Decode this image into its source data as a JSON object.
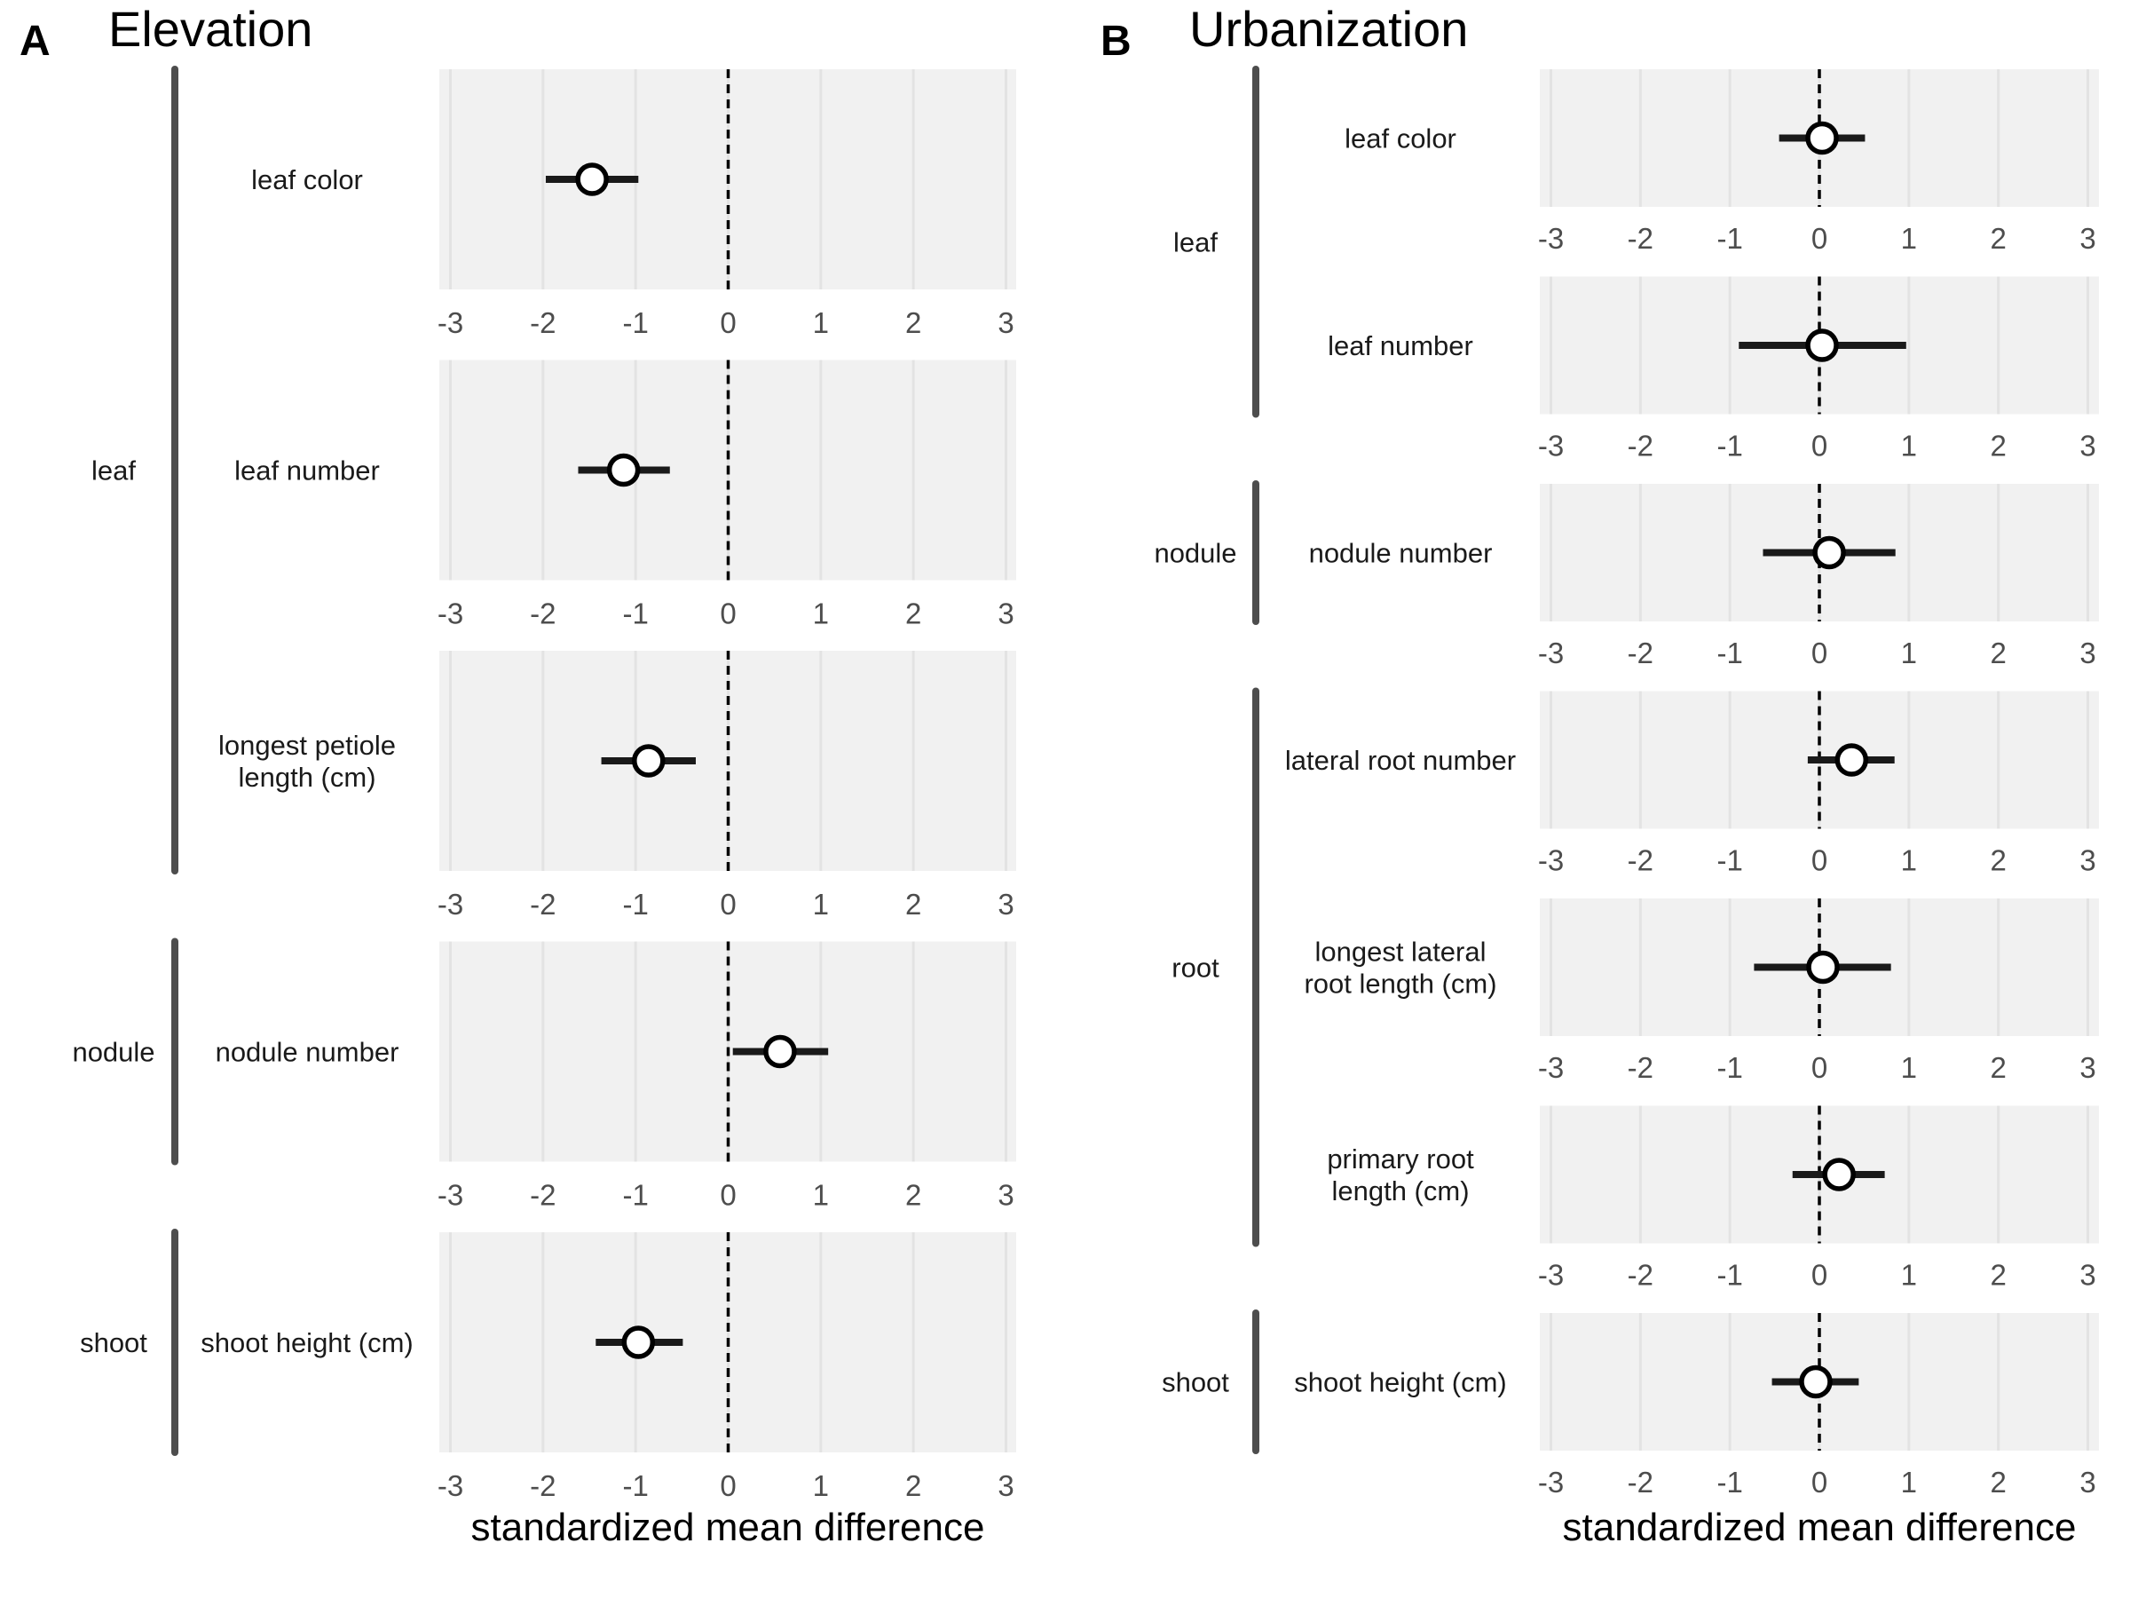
{
  "chart_data": [
    {
      "type": "forest",
      "panel_label": "A",
      "title": "Elevation",
      "xlabel": "standardized mean difference",
      "xlim": [
        -3,
        3
      ],
      "x_ticks": [
        "-3",
        "-2",
        "-1",
        "0",
        "1",
        "2",
        "3"
      ],
      "reference_line": 0,
      "groups": [
        {
          "name": "leaf",
          "traits": [
            {
              "label": "leaf color",
              "estimate": -1.47,
              "lower": -1.97,
              "upper": -0.97
            },
            {
              "label": "leaf number",
              "estimate": -1.13,
              "lower": -1.62,
              "upper": -0.63
            },
            {
              "label": "longest petiole length (cm)",
              "label_lines": [
                "longest petiole",
                "length (cm)"
              ],
              "estimate": -0.86,
              "lower": -1.37,
              "upper": -0.35
            }
          ]
        },
        {
          "name": "nodule",
          "traits": [
            {
              "label": "nodule number",
              "estimate": 0.56,
              "lower": 0.05,
              "upper": 1.08
            }
          ]
        },
        {
          "name": "shoot",
          "traits": [
            {
              "label": "shoot height (cm)",
              "estimate": -0.97,
              "lower": -1.43,
              "upper": -0.49
            }
          ]
        }
      ]
    },
    {
      "type": "forest",
      "panel_label": "B",
      "title": "Urbanization",
      "xlabel": "standardized mean difference",
      "xlim": [
        -3,
        3
      ],
      "x_ticks": [
        "-3",
        "-2",
        "-1",
        "0",
        "1",
        "2",
        "3"
      ],
      "reference_line": 0,
      "groups": [
        {
          "name": "leaf",
          "traits": [
            {
              "label": "leaf color",
              "estimate": 0.03,
              "lower": -0.45,
              "upper": 0.51
            },
            {
              "label": "leaf number",
              "estimate": 0.03,
              "lower": -0.9,
              "upper": 0.97
            }
          ]
        },
        {
          "name": "nodule",
          "traits": [
            {
              "label": "nodule number",
              "estimate": 0.11,
              "lower": -0.63,
              "upper": 0.85
            }
          ]
        },
        {
          "name": "root",
          "traits": [
            {
              "label": "lateral root number",
              "estimate": 0.36,
              "lower": -0.13,
              "upper": 0.84
            },
            {
              "label": "longest lateral root length (cm)",
              "label_lines": [
                "longest lateral",
                "root length (cm)"
              ],
              "estimate": 0.04,
              "lower": -0.73,
              "upper": 0.8
            },
            {
              "label": "primary root length (cm)",
              "label_lines": [
                "primary root",
                "length (cm)"
              ],
              "estimate": 0.22,
              "lower": -0.3,
              "upper": 0.73
            }
          ]
        },
        {
          "name": "shoot",
          "traits": [
            {
              "label": "shoot height (cm)",
              "estimate": -0.04,
              "lower": -0.53,
              "upper": 0.44
            }
          ]
        }
      ]
    }
  ]
}
